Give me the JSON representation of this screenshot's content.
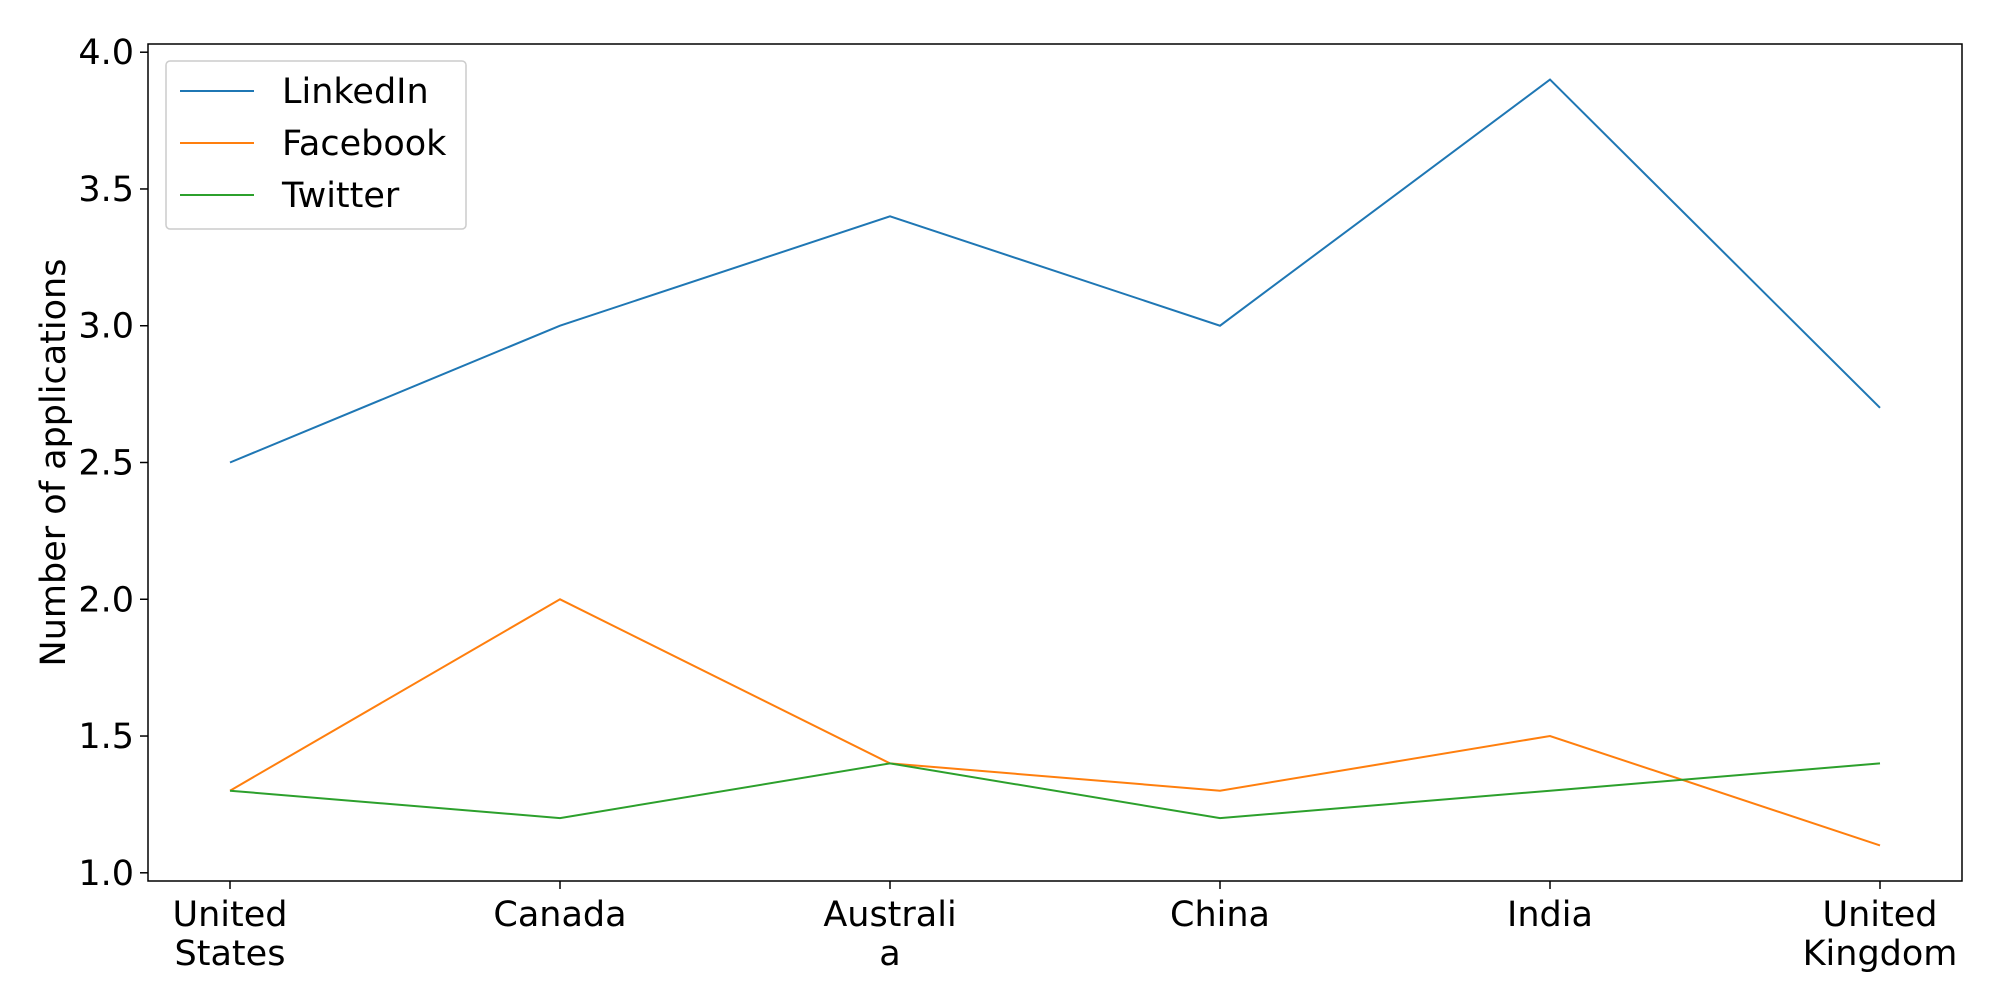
{
  "chart_data": {
    "type": "line",
    "title": "",
    "xlabel": "",
    "ylabel": "Number of applications",
    "categories": [
      [
        "United",
        "States"
      ],
      [
        "Canada"
      ],
      [
        "Australi",
        "a"
      ],
      [
        "China"
      ],
      [
        "India"
      ],
      [
        "United",
        "Kingdom"
      ]
    ],
    "ylim": [
      0.97,
      4.03
    ],
    "yticks": [
      "1.0",
      "1.5",
      "2.0",
      "2.5",
      "3.0",
      "3.5",
      "4.0"
    ],
    "grid": false,
    "legend_position": "top-left",
    "series": [
      {
        "name": "LinkedIn",
        "color": "#1f77b4",
        "values": [
          2.5,
          3.0,
          3.4,
          3.0,
          3.9,
          2.7
        ]
      },
      {
        "name": "Facebook",
        "color": "#ff7f0e",
        "values": [
          1.3,
          2.0,
          1.4,
          1.3,
          1.5,
          1.1
        ]
      },
      {
        "name": "Twitter",
        "color": "#2ca02c",
        "values": [
          1.3,
          1.2,
          1.4,
          1.2,
          1.3,
          1.4
        ]
      }
    ]
  }
}
